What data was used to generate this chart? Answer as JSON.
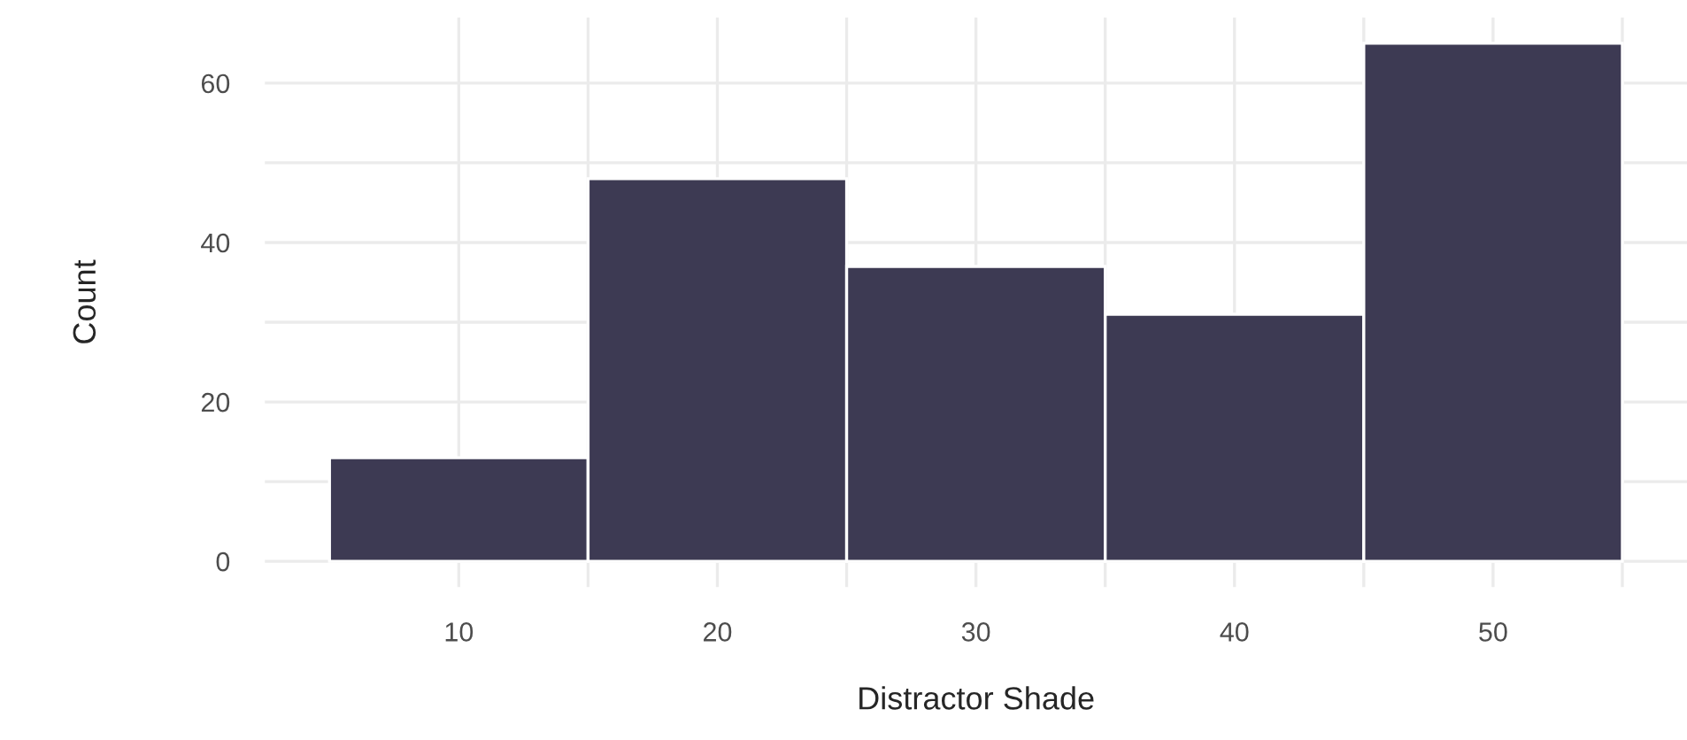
{
  "chart_data": {
    "type": "histogram",
    "xlabel": "Distractor Shade",
    "ylabel": "Count",
    "bins": [
      5,
      15,
      25,
      35,
      45,
      55
    ],
    "values": [
      13,
      48,
      37,
      31,
      65
    ],
    "color": "#3d3a53",
    "xlim": [
      2.5,
      57.5
    ],
    "ylim": [
      -3.25,
      68.25
    ],
    "xticks": [
      10,
      {
        "value": 15,
        "label": null
      },
      20,
      {
        "value": 25,
        "label": null
      },
      30,
      {
        "value": 35,
        "label": null
      },
      40,
      {
        "value": 45,
        "label": null
      },
      50,
      {
        "value": 55,
        "label": null
      }
    ],
    "yticks": [
      0,
      {
        "value": 10,
        "label": null
      },
      20,
      {
        "value": 30,
        "label": null
      },
      40,
      {
        "value": 50,
        "label": null
      },
      60
    ],
    "grid": true
  }
}
